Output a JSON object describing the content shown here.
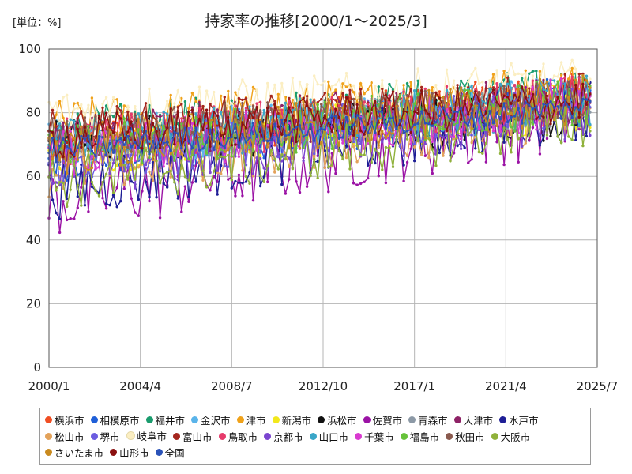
{
  "chart_data": {
    "type": "line",
    "title": "持家率の推移[2000/1～2025/3]",
    "unit_label": "[単位：%]",
    "xlabel": "",
    "ylabel": "",
    "x_start": "2000/1",
    "x_end": "2025/7",
    "ylim": [
      0,
      100
    ],
    "y_ticks": [
      0,
      20,
      40,
      60,
      80,
      100
    ],
    "x_ticks": [
      "2000/1",
      "2004/4",
      "2008/7",
      "2012/10",
      "2017/1",
      "2021/4",
      "2025/7"
    ],
    "grid": true,
    "legend_position": "bottom",
    "series": [
      {
        "name": "横浜市",
        "color": "#f04e23",
        "base_start": 70,
        "base_end": 86,
        "amp": 7
      },
      {
        "name": "相模原市",
        "color": "#1f5fd8",
        "base_start": 66,
        "base_end": 84,
        "amp": 8
      },
      {
        "name": "福井市",
        "color": "#1a9c6e",
        "base_start": 74,
        "base_end": 88,
        "amp": 7
      },
      {
        "name": "金沢市",
        "color": "#5ab4ea",
        "base_start": 70,
        "base_end": 84,
        "amp": 8
      },
      {
        "name": "津市",
        "color": "#f0a21a",
        "base_start": 76,
        "base_end": 88,
        "amp": 8
      },
      {
        "name": "新潟市",
        "color": "#f2e81c",
        "base_start": 68,
        "base_end": 82,
        "amp": 8
      },
      {
        "name": "浜松市",
        "color": "#111111",
        "base_start": 70,
        "base_end": 80,
        "amp": 8
      },
      {
        "name": "佐賀市",
        "color": "#9b13a5",
        "base_start": 52,
        "base_end": 80,
        "amp": 12
      },
      {
        "name": "青森市",
        "color": "#8c99a6",
        "base_start": 70,
        "base_end": 82,
        "amp": 7
      },
      {
        "name": "大津市",
        "color": "#8e2266",
        "base_start": 72,
        "base_end": 84,
        "amp": 8
      },
      {
        "name": "水戸市",
        "color": "#1e1e96",
        "base_start": 56,
        "base_end": 82,
        "amp": 10
      },
      {
        "name": "松山市",
        "color": "#e3a25a",
        "base_start": 62,
        "base_end": 80,
        "amp": 9
      },
      {
        "name": "堺市",
        "color": "#6b5ce0",
        "base_start": 64,
        "base_end": 84,
        "amp": 8
      },
      {
        "name": "岐阜市",
        "color": "#fbeec2",
        "base_start": 80,
        "base_end": 90,
        "amp": 7
      },
      {
        "name": "富山市",
        "color": "#a5261e",
        "base_start": 74,
        "base_end": 86,
        "amp": 7
      },
      {
        "name": "鳥取市",
        "color": "#e63a6b",
        "base_start": 70,
        "base_end": 84,
        "amp": 8
      },
      {
        "name": "京都市",
        "color": "#7b45d0",
        "base_start": 62,
        "base_end": 80,
        "amp": 9
      },
      {
        "name": "山口市",
        "color": "#3aa6c8",
        "base_start": 70,
        "base_end": 84,
        "amp": 8
      },
      {
        "name": "千葉市",
        "color": "#d93ad0",
        "base_start": 66,
        "base_end": 84,
        "amp": 8
      },
      {
        "name": "福島市",
        "color": "#66c23a",
        "base_start": 68,
        "base_end": 84,
        "amp": 8
      },
      {
        "name": "秋田市",
        "color": "#8a5a4e",
        "base_start": 72,
        "base_end": 84,
        "amp": 7
      },
      {
        "name": "大阪市",
        "color": "#8fb13a",
        "base_start": 58,
        "base_end": 78,
        "amp": 9
      },
      {
        "name": "さいたま市",
        "color": "#c98a1e",
        "base_start": 68,
        "base_end": 84,
        "amp": 8
      },
      {
        "name": "山形市",
        "color": "#8a1010",
        "base_start": 72,
        "base_end": 84,
        "amp": 7
      },
      {
        "name": "全国",
        "color": "#2a52b8",
        "base_start": 68,
        "base_end": 82,
        "amp": 4
      }
    ]
  }
}
